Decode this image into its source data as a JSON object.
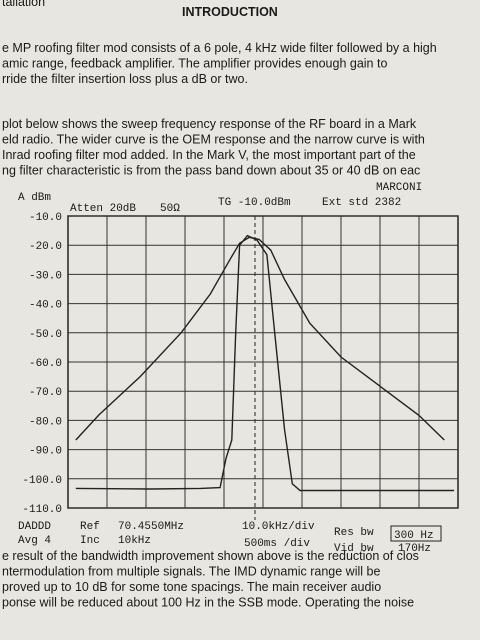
{
  "header": {
    "running_head": "tallation",
    "title": "INTRODUCTION"
  },
  "paragraphs": [
    [
      "e MP roofing filter mod consists of a 6 pole, 4 kHz wide filter followed by a high",
      "amic range, feedback amplifier. The amplifier provides enough gain to",
      "rride the filter insertion loss plus a dB or two."
    ],
    [
      "plot below shows the sweep frequency response of the RF board in a Mark",
      "eld radio. The wider curve is the OEM response and the narrow curve is with",
      "Inrad roofing filter mod added. In the Mark V, the most important part of the",
      "ng filter characteristic is from the pass band down about 35 or 40 dB on eac"
    ],
    [
      "e result of the bandwidth improvement shown above is the reduction of clos",
      "ntermodulation from multiple signals. The IMD dynamic range will be",
      "proved up to 10 dB for some tone spacings. The main receiver audio",
      "ponse will be reduced about 100 Hz in the SSB mode. Operating the noise"
    ]
  ],
  "chart_data": {
    "type": "line",
    "y_label": "A dBm",
    "annotations": [
      "MARCONI",
      "Atten 20dB",
      "50Ω",
      "TG -10.0dBm",
      "Ext std 2382",
      "DADDD",
      "Avg 4",
      "Ref",
      "70.4550MHz",
      "Inc",
      "10kHz",
      "10.0kHz/div",
      "500ms /div",
      "Res bw",
      "300 Hz",
      "Vid bw",
      "170Hz"
    ],
    "xlim": [
      -50,
      50
    ],
    "ylim": [
      -110,
      -10
    ],
    "yticks": [
      {
        "value": -10,
        "label": "-10.0"
      },
      {
        "value": -20,
        "label": "-20.0"
      },
      {
        "value": -30,
        "label": "-30.0"
      },
      {
        "value": -40,
        "label": "-40.0"
      },
      {
        "value": -50,
        "label": "-50.0"
      },
      {
        "value": -60,
        "label": "-60.0"
      },
      {
        "value": -70,
        "label": "-70.0"
      },
      {
        "value": -80,
        "label": "-80.0"
      },
      {
        "value": -90,
        "label": "-90.0"
      },
      {
        "value": -100,
        "label": "-100.0"
      },
      {
        "value": -110,
        "label": "-110.0"
      }
    ],
    "grid": true,
    "series": [
      {
        "color": "#222",
        "x": [
          -48,
          -42,
          -31.5,
          -21,
          -13.5,
          -8.5,
          -6,
          -3.5,
          -1,
          2,
          5.5,
          12,
          20,
          30,
          40,
          46.5
        ],
        "values": [
          -86.7,
          -78,
          -65,
          -50,
          -36.7,
          -25,
          -19.3,
          -17.3,
          -18,
          -21.7,
          -31.7,
          -46.7,
          -58.3,
          -68.3,
          -78.3,
          -86.7
        ]
      },
      {
        "color": "#222",
        "x": [
          -48,
          -29,
          -16,
          -11,
          -9.5,
          -8,
          -7,
          -6,
          -4,
          -1.5,
          1,
          3,
          5.5,
          7.5,
          9.5,
          30,
          49
        ],
        "values": [
          -103.3,
          -103.5,
          -103.3,
          -103,
          -93,
          -86.7,
          -50,
          -20,
          -16.7,
          -18.3,
          -23.3,
          -50,
          -83,
          -101.7,
          -104,
          -104,
          -104
        ]
      }
    ]
  }
}
